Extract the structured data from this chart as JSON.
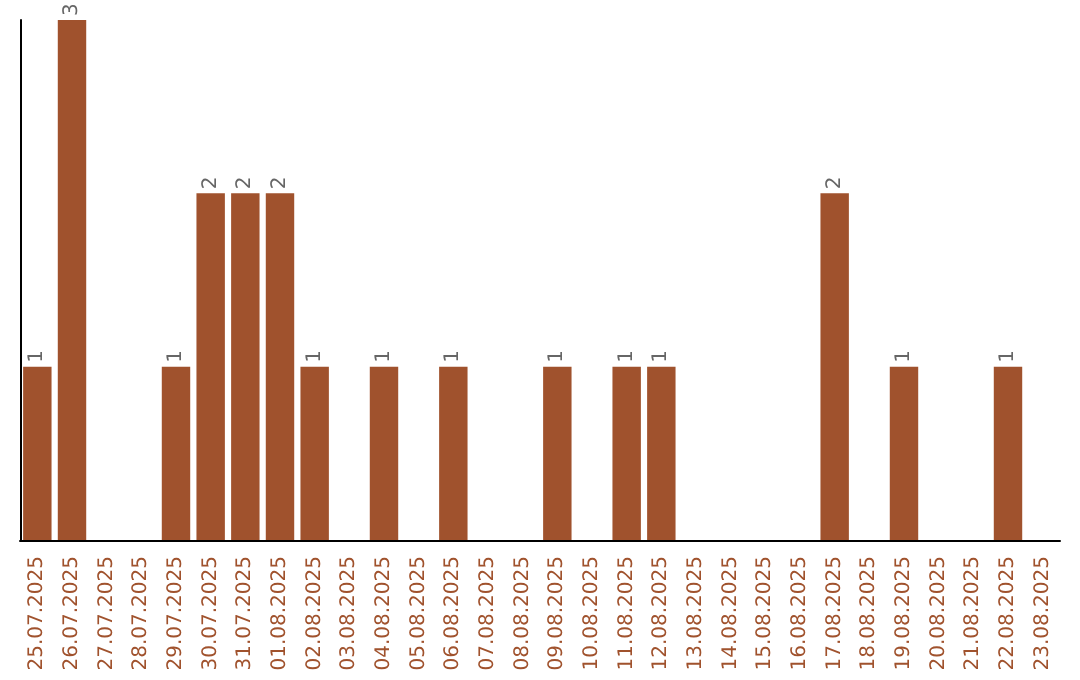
{
  "chart_data": {
    "type": "bar",
    "categories": [
      "25.07.2025",
      "26.07.2025",
      "27.07.2025",
      "28.07.2025",
      "29.07.2025",
      "30.07.2025",
      "31.07.2025",
      "01.08.2025",
      "02.08.2025",
      "03.08.2025",
      "04.08.2025",
      "05.08.2025",
      "06.08.2025",
      "07.08.2025",
      "08.08.2025",
      "09.08.2025",
      "10.08.2025",
      "11.08.2025",
      "12.08.2025",
      "13.08.2025",
      "14.08.2025",
      "15.08.2025",
      "16.08.2025",
      "17.08.2025",
      "18.08.2025",
      "19.08.2025",
      "20.08.2025",
      "21.08.2025",
      "22.08.2025",
      "23.08.2025"
    ],
    "values": [
      1,
      3,
      null,
      null,
      1,
      2,
      2,
      2,
      1,
      null,
      1,
      null,
      1,
      null,
      null,
      1,
      null,
      1,
      1,
      null,
      null,
      null,
      null,
      2,
      null,
      1,
      null,
      null,
      1,
      null
    ],
    "color": "#a0522d",
    "data_labels": true,
    "tick_labels": "x"
  }
}
